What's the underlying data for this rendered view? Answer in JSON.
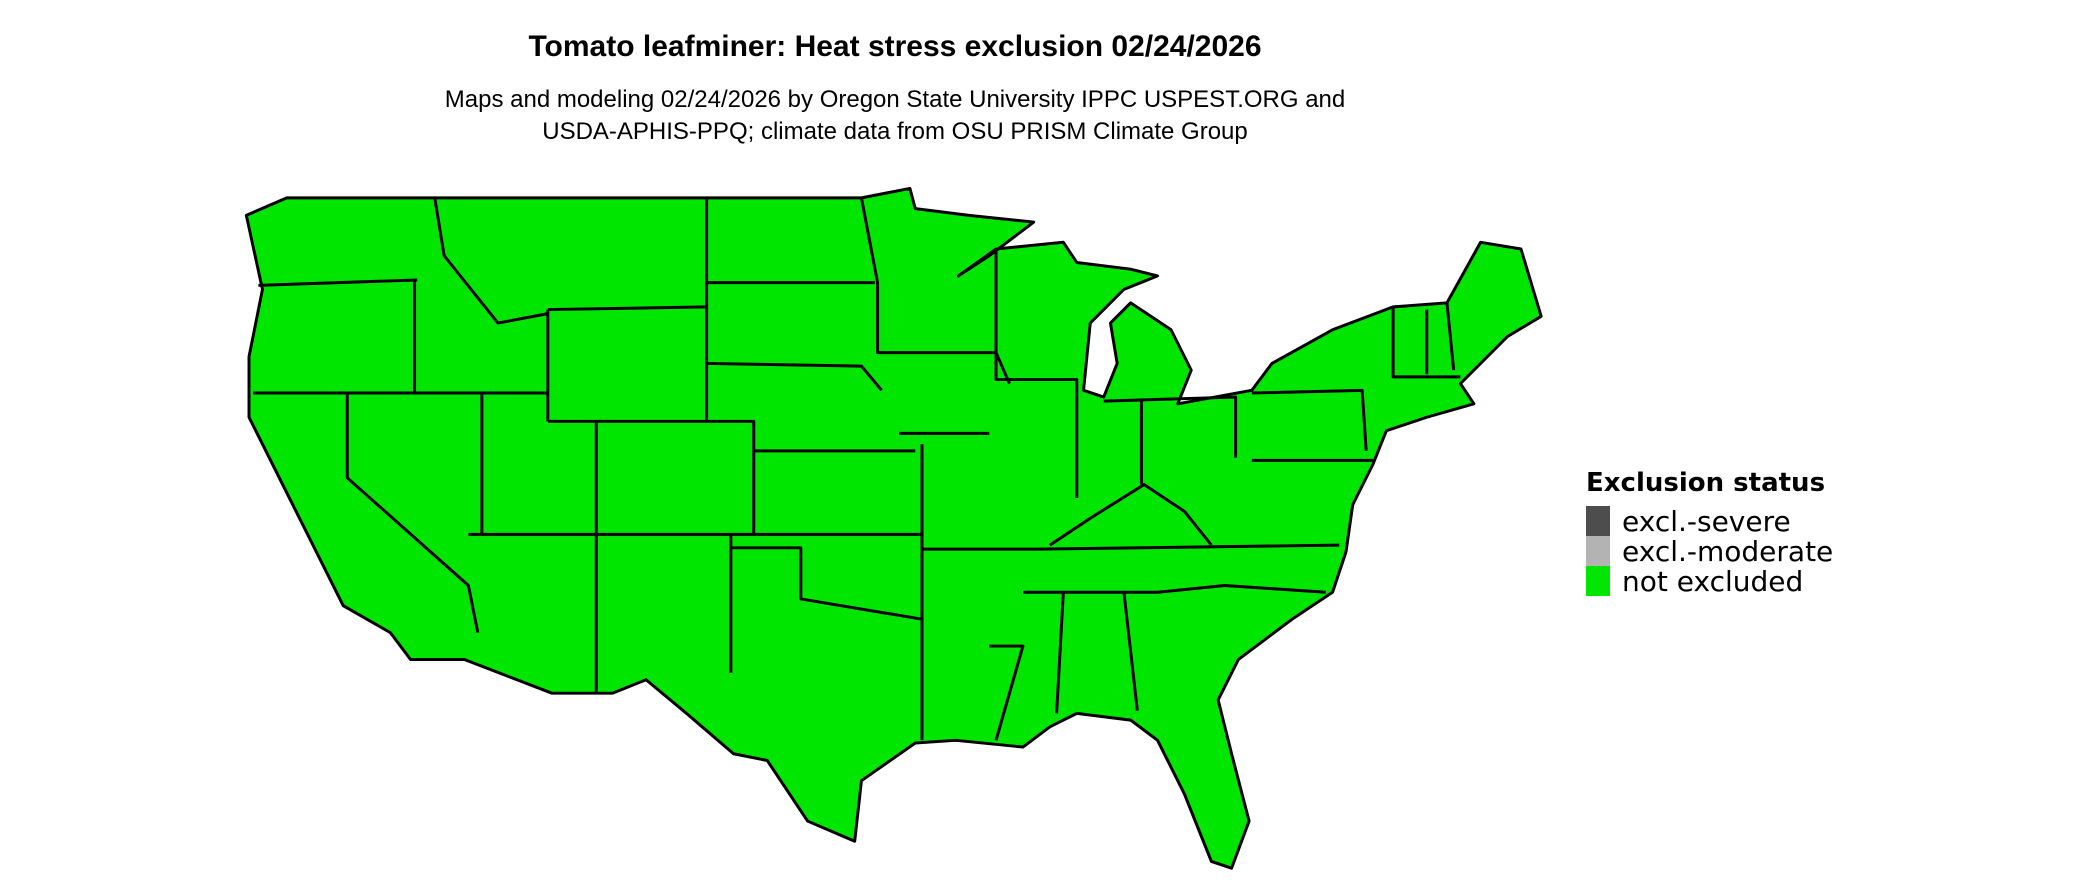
{
  "title": "Tomato leafminer: Heat stress exclusion 02/24/2026",
  "subtitle_lines": [
    "Maps and modeling 02/24/2026 by Oregon State University IPPC USPEST.ORG and",
    "USDA-APHIS-PPQ; climate data from OSU PRISM Climate Group"
  ],
  "map": {
    "region": "Contiguous United States",
    "fill_status": "not excluded",
    "fill_color": "#00e600",
    "border_color": "#000000"
  },
  "legend": {
    "title": "Exclusion status",
    "items": [
      {
        "label": "excl.-severe",
        "color": "#4d4d4d"
      },
      {
        "label": "excl.-moderate",
        "color": "#b3b3b3"
      },
      {
        "label": "not excluded",
        "color": "#00e600"
      }
    ]
  }
}
